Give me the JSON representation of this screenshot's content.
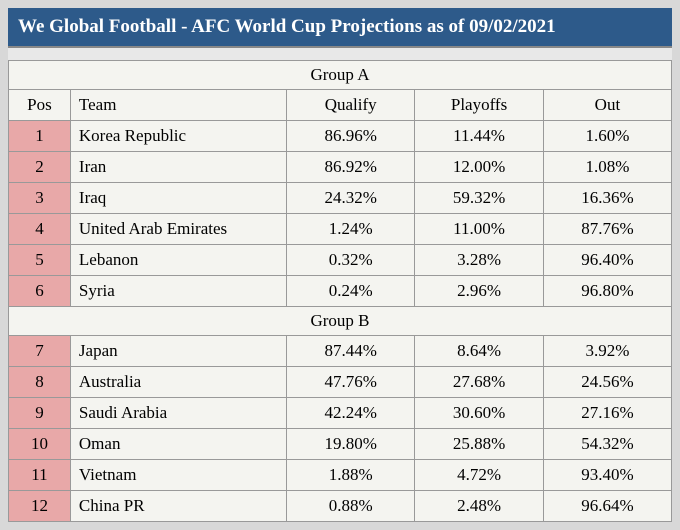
{
  "header_title": "We Global Football - AFC World Cup Projections as of 09/02/2021",
  "columns": {
    "pos": "Pos",
    "team": "Team",
    "qualify": "Qualify",
    "playoffs": "Playoffs",
    "out": "Out"
  },
  "groups": [
    {
      "label": "Group A",
      "rows": [
        {
          "pos": "1",
          "team": "Korea Republic",
          "qualify": "86.96%",
          "playoffs": "11.44%",
          "out": "1.60%"
        },
        {
          "pos": "2",
          "team": "Iran",
          "qualify": "86.92%",
          "playoffs": "12.00%",
          "out": "1.08%"
        },
        {
          "pos": "3",
          "team": "Iraq",
          "qualify": "24.32%",
          "playoffs": "59.32%",
          "out": "16.36%"
        },
        {
          "pos": "4",
          "team": "United Arab Emirates",
          "qualify": "1.24%",
          "playoffs": "11.00%",
          "out": "87.76%"
        },
        {
          "pos": "5",
          "team": "Lebanon",
          "qualify": "0.32%",
          "playoffs": "3.28%",
          "out": "96.40%"
        },
        {
          "pos": "6",
          "team": "Syria",
          "qualify": "0.24%",
          "playoffs": "2.96%",
          "out": "96.80%"
        }
      ]
    },
    {
      "label": "Group B",
      "rows": [
        {
          "pos": "7",
          "team": "Japan",
          "qualify": "87.44%",
          "playoffs": "8.64%",
          "out": "3.92%"
        },
        {
          "pos": "8",
          "team": "Australia",
          "qualify": "47.76%",
          "playoffs": "27.68%",
          "out": "24.56%"
        },
        {
          "pos": "9",
          "team": "Saudi Arabia",
          "qualify": "42.24%",
          "playoffs": "30.60%",
          "out": "27.16%"
        },
        {
          "pos": "10",
          "team": "Oman",
          "qualify": "19.80%",
          "playoffs": "25.88%",
          "out": "54.32%"
        },
        {
          "pos": "11",
          "team": "Vietnam",
          "qualify": "1.88%",
          "playoffs": "4.72%",
          "out": "93.40%"
        },
        {
          "pos": "12",
          "team": "China PR",
          "qualify": "0.88%",
          "playoffs": "2.48%",
          "out": "96.64%"
        }
      ]
    }
  ],
  "colors": {
    "header_bg": "#2d5a8a",
    "header_text": "#ffffff",
    "pos_bg": "#e8a8a8",
    "cell_bg": "#f4f4f0",
    "border": "#999999"
  }
}
